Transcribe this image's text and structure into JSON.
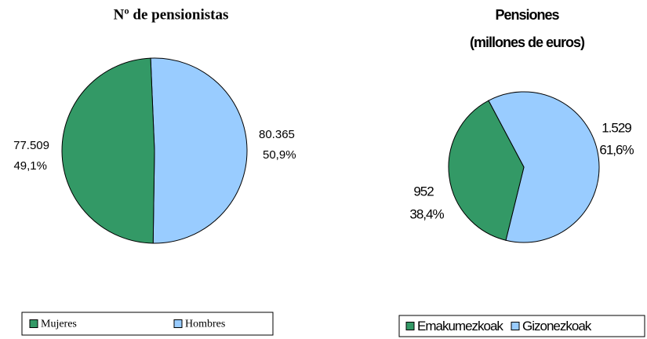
{
  "chart_data": [
    {
      "type": "pie",
      "title": "Nº de pensionistas",
      "categories": [
        "Mujeres",
        "Hombres"
      ],
      "values": [
        77509,
        80365
      ],
      "value_labels": [
        "77.509",
        "80.365"
      ],
      "percents": [
        49.1,
        50.9
      ],
      "percent_labels": [
        "49,1%",
        "50,9%"
      ],
      "colors": [
        "#339966",
        "#99ccff"
      ],
      "legend": "bottom"
    },
    {
      "type": "pie",
      "title": "Pensiones",
      "subtitle": "(millones de euros)",
      "categories": [
        "Emakumezkoak",
        "Gizonezkoak"
      ],
      "values": [
        952,
        1529
      ],
      "value_labels": [
        "952",
        "1.529"
      ],
      "percents": [
        38.4,
        61.6
      ],
      "percent_labels": [
        "38,4%",
        "61,6%"
      ],
      "colors": [
        "#339966",
        "#99ccff"
      ],
      "legend": "bottom"
    }
  ]
}
